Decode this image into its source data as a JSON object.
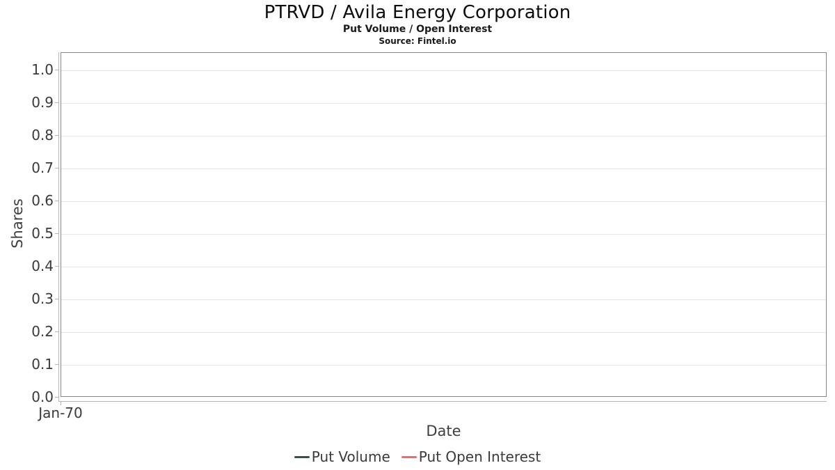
{
  "header": {
    "title": "PTRVD / Avila Energy Corporation",
    "subtitle": "Put Volume / Open Interest",
    "source": "Source: Fintel.io"
  },
  "axes": {
    "y_label": "Shares",
    "x_label": "Date",
    "y_ticks": [
      "1.0",
      "0.9",
      "0.8",
      "0.7",
      "0.6",
      "0.5",
      "0.4",
      "0.3",
      "0.2",
      "0.1",
      "0.0"
    ],
    "x_ticks": [
      "Jan-70"
    ]
  },
  "legend": [
    {
      "label": "Put Volume",
      "color": "#2f5742"
    },
    {
      "label": "Put Open Interest",
      "color": "#f96862"
    }
  ],
  "chart_data": {
    "type": "line",
    "title": "PTRVD / Avila Energy Corporation",
    "subtitle": "Put Volume / Open Interest",
    "source": "Source: Fintel.io",
    "xlabel": "Date",
    "ylabel": "Shares",
    "x": [
      "Jan-70"
    ],
    "series": [
      {
        "name": "Put Volume",
        "color": "#2f5742",
        "values": []
      },
      {
        "name": "Put Open Interest",
        "color": "#f96862",
        "values": []
      }
    ],
    "ylim": [
      0.0,
      1.05
    ],
    "yticks": [
      0.0,
      0.1,
      0.2,
      0.3,
      0.4,
      0.5,
      0.6,
      0.7,
      0.8,
      0.9,
      1.0
    ],
    "grid": true,
    "legend_position": "bottom"
  }
}
